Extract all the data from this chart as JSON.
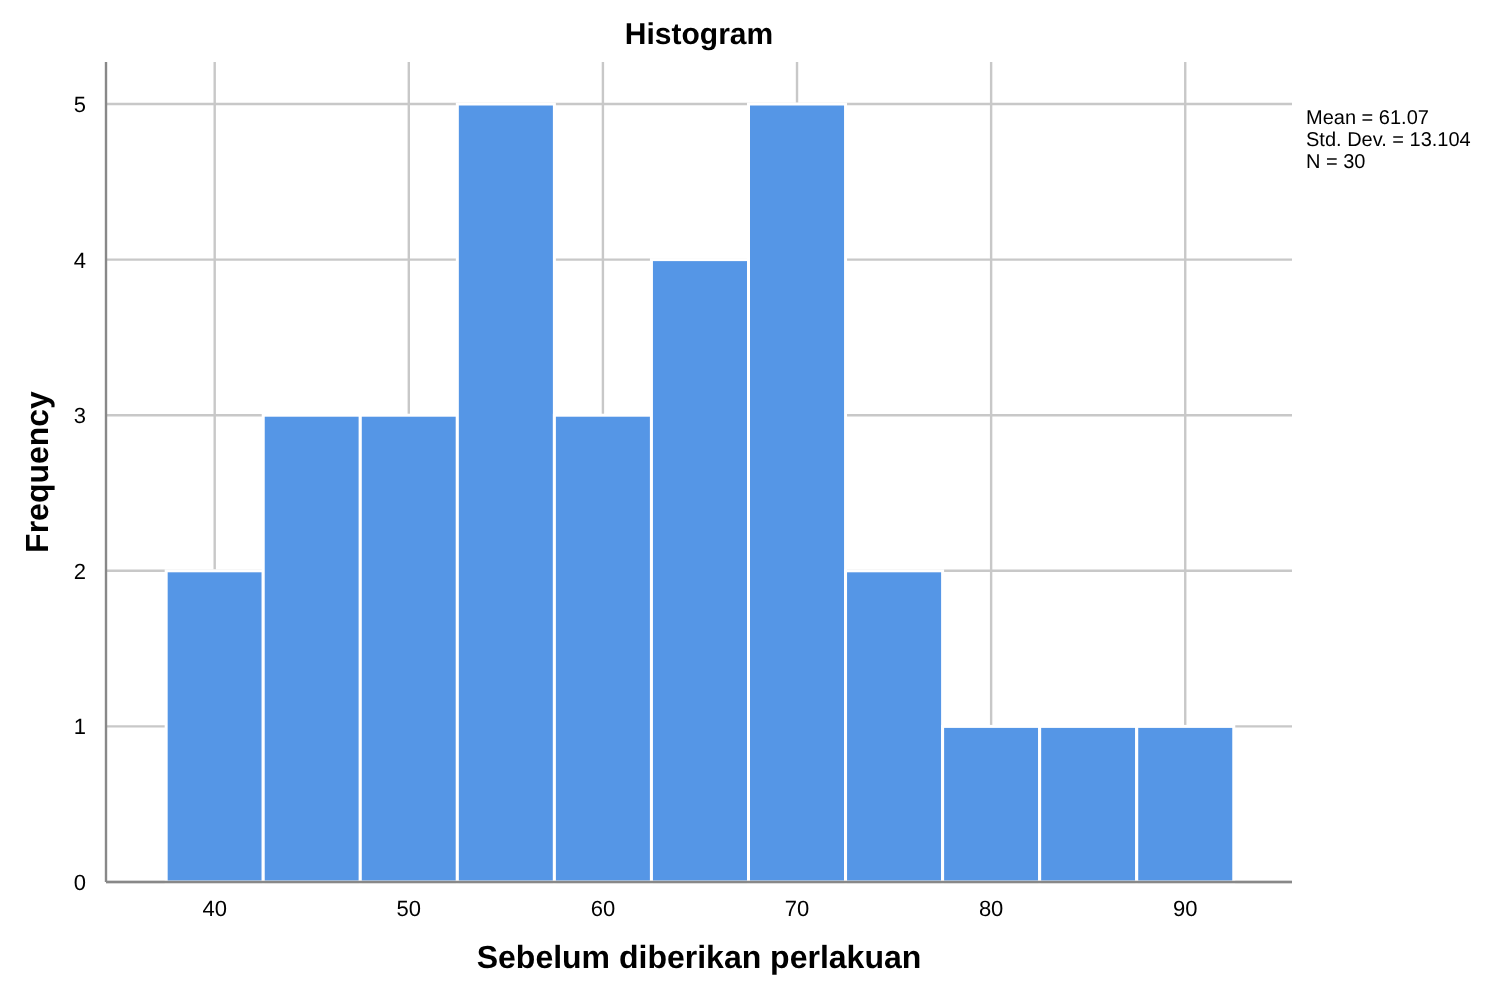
{
  "chart_data": {
    "type": "histogram",
    "title": "Histogram",
    "xlabel": "Sebelum diberikan perlakuan",
    "ylabel": "Frequency",
    "bins": [
      37.5,
      42.5,
      47.5,
      52.5,
      57.5,
      62.5,
      67.5,
      72.5,
      77.5,
      82.5,
      87.5,
      92.5
    ],
    "values": [
      2,
      3,
      3,
      5,
      3,
      4,
      5,
      2,
      1,
      1,
      1
    ],
    "color": "#5596e6",
    "xlim": [
      34.4,
      95.5
    ],
    "xticks": [
      40,
      50,
      60,
      70,
      80,
      90
    ],
    "ylim": [
      0,
      5.27
    ],
    "yticks": [
      0,
      1,
      2,
      3,
      4,
      5
    ],
    "grid": true,
    "annotations": [
      "Mean = 61.07",
      "Std. Dev. = 13.104",
      "N = 30"
    ]
  }
}
